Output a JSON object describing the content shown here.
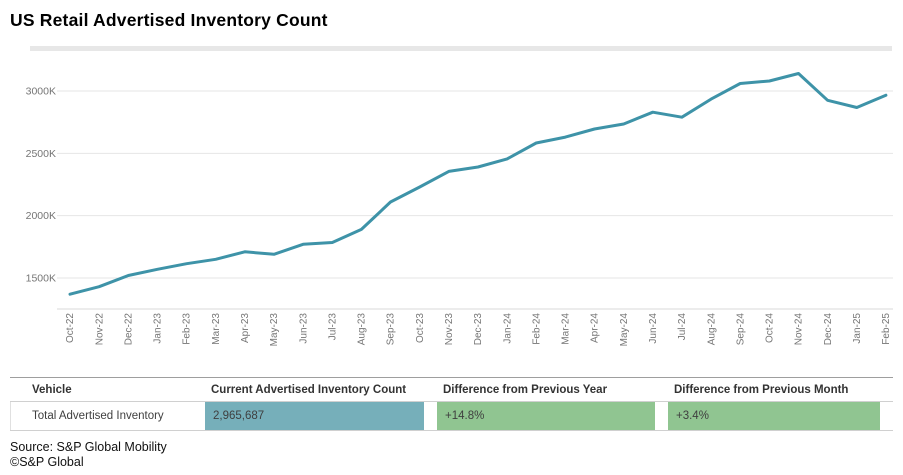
{
  "header": {
    "title": "US Retail Advertised Inventory Count"
  },
  "chart_data": {
    "type": "line",
    "title": "US Retail Advertised Inventory Count",
    "series": [
      {
        "name": "Total Advertised Inventory",
        "values": [
          1370,
          1430,
          1520,
          1570,
          1615,
          1650,
          1710,
          1690,
          1770,
          1785,
          1890,
          2110,
          2230,
          2355,
          2390,
          2455,
          2583,
          2630,
          2695,
          2735,
          2830,
          2790,
          2935,
          3060,
          3080,
          3140,
          2925,
          2868,
          2966
        ]
      }
    ],
    "unit": "thousands",
    "categories": [
      "Oct-22",
      "Nov-22",
      "Dec-22",
      "Jan-23",
      "Feb-23",
      "Mar-23",
      "Apr-23",
      "May-23",
      "Jun-23",
      "Jul-23",
      "Aug-23",
      "Sep-23",
      "Oct-23",
      "Nov-23",
      "Dec-23",
      "Jan-24",
      "Feb-24",
      "Mar-24",
      "Apr-24",
      "May-24",
      "Jun-24",
      "Jul-24",
      "Aug-24",
      "Sep-24",
      "Oct-24",
      "Nov-24",
      "Dec-24",
      "Jan-25",
      "Feb-25"
    ],
    "yticks": [
      {
        "v": 1500,
        "label": "1500K"
      },
      {
        "v": 2000,
        "label": "2000K"
      },
      {
        "v": 2500,
        "label": "2500K"
      },
      {
        "v": 3000,
        "label": "3000K"
      }
    ],
    "ylim": [
      1250,
      3260
    ],
    "grid": true,
    "legend_position": "none",
    "xlabel": "",
    "ylabel": "",
    "colors": {
      "line": "#3e93a8",
      "gridline": "#e6e6e6",
      "axis_line": "#d9d9d9",
      "tick_text": "#757575"
    }
  },
  "table": {
    "columns": [
      "Vehicle",
      "Current Advertised Inventory Count",
      "Difference from Previous Year",
      "Difference from Previous Month"
    ],
    "row": {
      "vehicle": "Total Advertised Inventory",
      "count": "2,965,687",
      "diff_year": "+14.8%",
      "diff_month": "+3.4%"
    },
    "colors": {
      "count_bg": "#76afba",
      "diff_bg": "#90c591"
    }
  },
  "footer": {
    "source": "Source: S&P Global Mobility",
    "copyright": "©S&P Global"
  }
}
